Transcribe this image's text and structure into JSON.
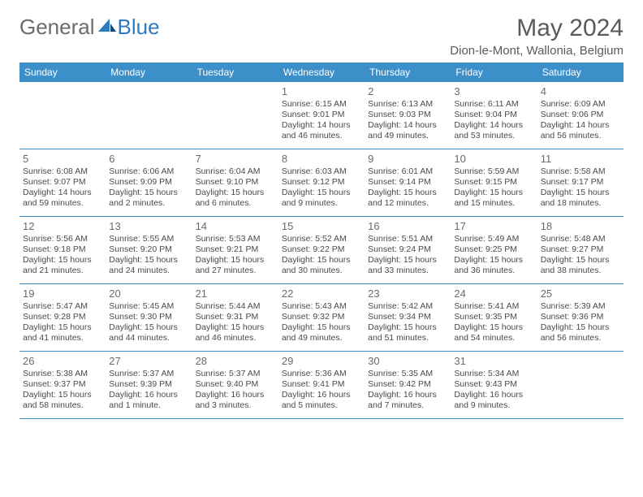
{
  "brand": {
    "part1": "General",
    "part2": "Blue"
  },
  "title": "May 2024",
  "location": "Dion-le-Mont, Wallonia, Belgium",
  "colors": {
    "headerBg": "#3d8fc9",
    "text": "#5a5a5a",
    "cellText": "#4a4a4a"
  },
  "dayNames": [
    "Sunday",
    "Monday",
    "Tuesday",
    "Wednesday",
    "Thursday",
    "Friday",
    "Saturday"
  ],
  "weeks": [
    [
      {
        "n": "",
        "s": "",
        "t": "",
        "d": ""
      },
      {
        "n": "",
        "s": "",
        "t": "",
        "d": ""
      },
      {
        "n": "",
        "s": "",
        "t": "",
        "d": ""
      },
      {
        "n": "1",
        "s": "Sunrise: 6:15 AM",
        "t": "Sunset: 9:01 PM",
        "d": "Daylight: 14 hours and 46 minutes."
      },
      {
        "n": "2",
        "s": "Sunrise: 6:13 AM",
        "t": "Sunset: 9:03 PM",
        "d": "Daylight: 14 hours and 49 minutes."
      },
      {
        "n": "3",
        "s": "Sunrise: 6:11 AM",
        "t": "Sunset: 9:04 PM",
        "d": "Daylight: 14 hours and 53 minutes."
      },
      {
        "n": "4",
        "s": "Sunrise: 6:09 AM",
        "t": "Sunset: 9:06 PM",
        "d": "Daylight: 14 hours and 56 minutes."
      }
    ],
    [
      {
        "n": "5",
        "s": "Sunrise: 6:08 AM",
        "t": "Sunset: 9:07 PM",
        "d": "Daylight: 14 hours and 59 minutes."
      },
      {
        "n": "6",
        "s": "Sunrise: 6:06 AM",
        "t": "Sunset: 9:09 PM",
        "d": "Daylight: 15 hours and 2 minutes."
      },
      {
        "n": "7",
        "s": "Sunrise: 6:04 AM",
        "t": "Sunset: 9:10 PM",
        "d": "Daylight: 15 hours and 6 minutes."
      },
      {
        "n": "8",
        "s": "Sunrise: 6:03 AM",
        "t": "Sunset: 9:12 PM",
        "d": "Daylight: 15 hours and 9 minutes."
      },
      {
        "n": "9",
        "s": "Sunrise: 6:01 AM",
        "t": "Sunset: 9:14 PM",
        "d": "Daylight: 15 hours and 12 minutes."
      },
      {
        "n": "10",
        "s": "Sunrise: 5:59 AM",
        "t": "Sunset: 9:15 PM",
        "d": "Daylight: 15 hours and 15 minutes."
      },
      {
        "n": "11",
        "s": "Sunrise: 5:58 AM",
        "t": "Sunset: 9:17 PM",
        "d": "Daylight: 15 hours and 18 minutes."
      }
    ],
    [
      {
        "n": "12",
        "s": "Sunrise: 5:56 AM",
        "t": "Sunset: 9:18 PM",
        "d": "Daylight: 15 hours and 21 minutes."
      },
      {
        "n": "13",
        "s": "Sunrise: 5:55 AM",
        "t": "Sunset: 9:20 PM",
        "d": "Daylight: 15 hours and 24 minutes."
      },
      {
        "n": "14",
        "s": "Sunrise: 5:53 AM",
        "t": "Sunset: 9:21 PM",
        "d": "Daylight: 15 hours and 27 minutes."
      },
      {
        "n": "15",
        "s": "Sunrise: 5:52 AM",
        "t": "Sunset: 9:22 PM",
        "d": "Daylight: 15 hours and 30 minutes."
      },
      {
        "n": "16",
        "s": "Sunrise: 5:51 AM",
        "t": "Sunset: 9:24 PM",
        "d": "Daylight: 15 hours and 33 minutes."
      },
      {
        "n": "17",
        "s": "Sunrise: 5:49 AM",
        "t": "Sunset: 9:25 PM",
        "d": "Daylight: 15 hours and 36 minutes."
      },
      {
        "n": "18",
        "s": "Sunrise: 5:48 AM",
        "t": "Sunset: 9:27 PM",
        "d": "Daylight: 15 hours and 38 minutes."
      }
    ],
    [
      {
        "n": "19",
        "s": "Sunrise: 5:47 AM",
        "t": "Sunset: 9:28 PM",
        "d": "Daylight: 15 hours and 41 minutes."
      },
      {
        "n": "20",
        "s": "Sunrise: 5:45 AM",
        "t": "Sunset: 9:30 PM",
        "d": "Daylight: 15 hours and 44 minutes."
      },
      {
        "n": "21",
        "s": "Sunrise: 5:44 AM",
        "t": "Sunset: 9:31 PM",
        "d": "Daylight: 15 hours and 46 minutes."
      },
      {
        "n": "22",
        "s": "Sunrise: 5:43 AM",
        "t": "Sunset: 9:32 PM",
        "d": "Daylight: 15 hours and 49 minutes."
      },
      {
        "n": "23",
        "s": "Sunrise: 5:42 AM",
        "t": "Sunset: 9:34 PM",
        "d": "Daylight: 15 hours and 51 minutes."
      },
      {
        "n": "24",
        "s": "Sunrise: 5:41 AM",
        "t": "Sunset: 9:35 PM",
        "d": "Daylight: 15 hours and 54 minutes."
      },
      {
        "n": "25",
        "s": "Sunrise: 5:39 AM",
        "t": "Sunset: 9:36 PM",
        "d": "Daylight: 15 hours and 56 minutes."
      }
    ],
    [
      {
        "n": "26",
        "s": "Sunrise: 5:38 AM",
        "t": "Sunset: 9:37 PM",
        "d": "Daylight: 15 hours and 58 minutes."
      },
      {
        "n": "27",
        "s": "Sunrise: 5:37 AM",
        "t": "Sunset: 9:39 PM",
        "d": "Daylight: 16 hours and 1 minute."
      },
      {
        "n": "28",
        "s": "Sunrise: 5:37 AM",
        "t": "Sunset: 9:40 PM",
        "d": "Daylight: 16 hours and 3 minutes."
      },
      {
        "n": "29",
        "s": "Sunrise: 5:36 AM",
        "t": "Sunset: 9:41 PM",
        "d": "Daylight: 16 hours and 5 minutes."
      },
      {
        "n": "30",
        "s": "Sunrise: 5:35 AM",
        "t": "Sunset: 9:42 PM",
        "d": "Daylight: 16 hours and 7 minutes."
      },
      {
        "n": "31",
        "s": "Sunrise: 5:34 AM",
        "t": "Sunset: 9:43 PM",
        "d": "Daylight: 16 hours and 9 minutes."
      },
      {
        "n": "",
        "s": "",
        "t": "",
        "d": ""
      }
    ]
  ]
}
